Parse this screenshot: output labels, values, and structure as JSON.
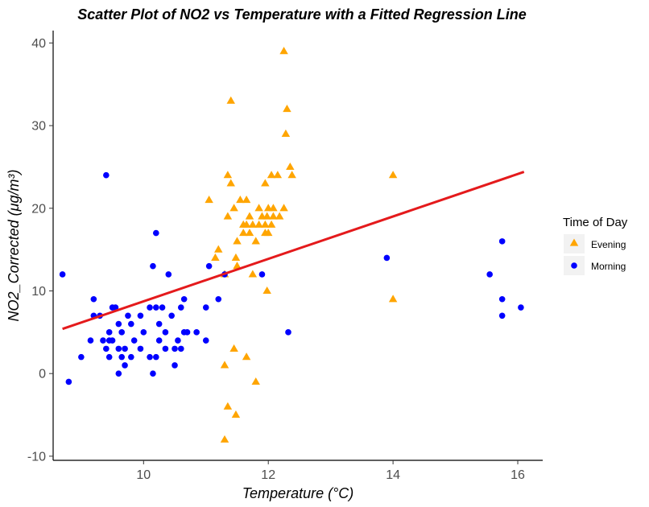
{
  "chart_data": {
    "type": "scatter",
    "title": "Scatter Plot of NO2 vs Temperature with a Fitted Regression Line",
    "xlabel": "Temperature (°C)",
    "ylabel": "NO2_Corrected (μg/m³)",
    "xlim": [
      8.55,
      16.4
    ],
    "ylim": [
      -10.5,
      41.5
    ],
    "x_ticks": [
      10,
      12,
      14,
      16
    ],
    "y_ticks": [
      -10,
      0,
      10,
      20,
      30,
      40
    ],
    "grid": false,
    "legend": {
      "title": "Time of Day",
      "position": "right",
      "entries": [
        {
          "label": "Evening",
          "color": "#FFA500",
          "shape": "triangle"
        },
        {
          "label": "Morning",
          "color": "#0000FF",
          "shape": "circle"
        }
      ]
    },
    "regression_line": {
      "color": "#E41A1C",
      "x": [
        8.7,
        16.1
      ],
      "y": [
        5.4,
        24.4
      ]
    },
    "series": [
      {
        "name": "Evening",
        "color": "#FFA500",
        "shape": "triangle",
        "points": [
          [
            12.25,
            39
          ],
          [
            11.4,
            33
          ],
          [
            12.3,
            32
          ],
          [
            12.28,
            29
          ],
          [
            12.35,
            25
          ],
          [
            11.35,
            24
          ],
          [
            12.38,
            24
          ],
          [
            12.05,
            24
          ],
          [
            12.15,
            24
          ],
          [
            14.0,
            24
          ],
          [
            11.4,
            23
          ],
          [
            11.95,
            23
          ],
          [
            11.05,
            21
          ],
          [
            11.65,
            21
          ],
          [
            11.55,
            21
          ],
          [
            11.45,
            20
          ],
          [
            11.85,
            20
          ],
          [
            12.0,
            20
          ],
          [
            12.08,
            20
          ],
          [
            12.25,
            20
          ],
          [
            11.35,
            19
          ],
          [
            11.7,
            19
          ],
          [
            11.9,
            19
          ],
          [
            11.98,
            19
          ],
          [
            12.08,
            19
          ],
          [
            12.18,
            19
          ],
          [
            11.6,
            18
          ],
          [
            11.65,
            18
          ],
          [
            11.75,
            18
          ],
          [
            11.85,
            18
          ],
          [
            11.95,
            18
          ],
          [
            12.05,
            18
          ],
          [
            11.6,
            17
          ],
          [
            11.7,
            17
          ],
          [
            11.95,
            17
          ],
          [
            12.0,
            17
          ],
          [
            11.5,
            16
          ],
          [
            11.8,
            16
          ],
          [
            11.2,
            15
          ],
          [
            11.15,
            14
          ],
          [
            11.48,
            14
          ],
          [
            11.5,
            13
          ],
          [
            11.3,
            12
          ],
          [
            11.75,
            12
          ],
          [
            11.98,
            10
          ],
          [
            14.0,
            9
          ],
          [
            11.45,
            3
          ],
          [
            11.65,
            2
          ],
          [
            11.3,
            1
          ],
          [
            11.8,
            -1
          ],
          [
            11.35,
            -4
          ],
          [
            11.48,
            -5
          ],
          [
            11.3,
            -8
          ]
        ]
      },
      {
        "name": "Morning",
        "color": "#0000FF",
        "shape": "circle",
        "points": [
          [
            8.7,
            12
          ],
          [
            9.4,
            24
          ],
          [
            10.2,
            17
          ],
          [
            10.15,
            13
          ],
          [
            10.4,
            12
          ],
          [
            11.05,
            13
          ],
          [
            11.3,
            12
          ],
          [
            11.9,
            12
          ],
          [
            13.9,
            14
          ],
          [
            15.55,
            12
          ],
          [
            15.75,
            16
          ],
          [
            15.75,
            9
          ],
          [
            15.75,
            7
          ],
          [
            16.05,
            8
          ],
          [
            9.2,
            9
          ],
          [
            9.2,
            7
          ],
          [
            9.3,
            7
          ],
          [
            9.5,
            8
          ],
          [
            9.55,
            8
          ],
          [
            9.75,
            7
          ],
          [
            9.45,
            5
          ],
          [
            9.6,
            6
          ],
          [
            9.65,
            5
          ],
          [
            9.8,
            6
          ],
          [
            9.95,
            7
          ],
          [
            10.1,
            8
          ],
          [
            10.2,
            8
          ],
          [
            10.25,
            6
          ],
          [
            10.3,
            8
          ],
          [
            10.35,
            5
          ],
          [
            10.45,
            7
          ],
          [
            10.6,
            8
          ],
          [
            10.65,
            9
          ],
          [
            10.65,
            5
          ],
          [
            10.85,
            5
          ],
          [
            11.0,
            8
          ],
          [
            11.2,
            9
          ],
          [
            11.0,
            4
          ],
          [
            9.15,
            4
          ],
          [
            9.35,
            4
          ],
          [
            9.4,
            3
          ],
          [
            9.45,
            4
          ],
          [
            9.5,
            4
          ],
          [
            9.6,
            3
          ],
          [
            9.7,
            3
          ],
          [
            9.85,
            4
          ],
          [
            10.0,
            5
          ],
          [
            10.25,
            4
          ],
          [
            10.35,
            3
          ],
          [
            10.5,
            3
          ],
          [
            10.55,
            4
          ],
          [
            10.6,
            3
          ],
          [
            10.7,
            5
          ],
          [
            12.32,
            5
          ],
          [
            9.0,
            2
          ],
          [
            9.45,
            2
          ],
          [
            9.65,
            2
          ],
          [
            9.8,
            2
          ],
          [
            9.95,
            3
          ],
          [
            10.1,
            2
          ],
          [
            10.2,
            2
          ],
          [
            10.5,
            1
          ],
          [
            9.7,
            1
          ],
          [
            9.6,
            0
          ],
          [
            10.15,
            0
          ],
          [
            8.8,
            -1
          ]
        ]
      }
    ]
  }
}
